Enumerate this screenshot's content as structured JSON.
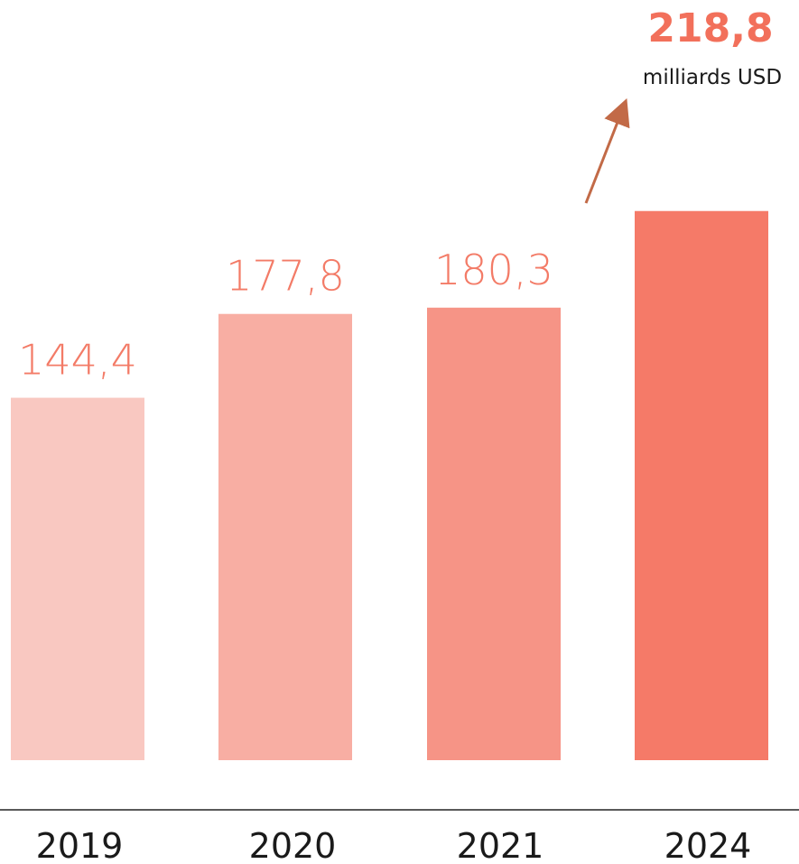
{
  "chart_data": {
    "type": "bar",
    "categories": [
      "2019",
      "2020",
      "2021",
      "2024"
    ],
    "values": [
      144.4,
      177.8,
      180.3,
      218.8
    ],
    "value_labels": [
      "144,4",
      "177,8",
      "180,3",
      "218,8"
    ],
    "unit_label": "milliards USD",
    "title": "",
    "xlabel": "",
    "ylabel": "",
    "ylim": [
      0,
      240
    ],
    "grid": false,
    "legend": "none",
    "highlight_index": 3,
    "annotation": "arrow from 2021 bar toward 2024 bar",
    "colors": {
      "bars": [
        "#f9c8c1",
        "#f8aea3",
        "#f69486",
        "#f57a68"
      ],
      "labels": "#f37b67",
      "highlight_label": "#f2705b",
      "arrow": "#c26a47",
      "baseline": "#222222",
      "category_text": "#1a1a1a",
      "unit_text": "#1a1a1a"
    }
  }
}
